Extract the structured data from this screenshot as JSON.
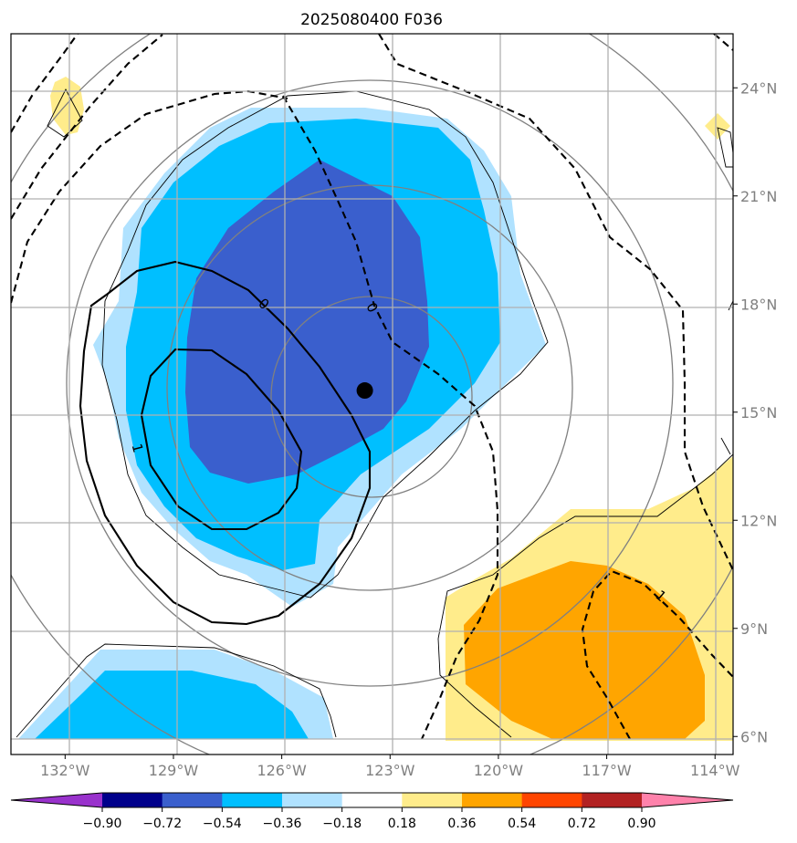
{
  "title": "2025080400 F036",
  "map": {
    "lon_range": [
      -133.5,
      -113.5
    ],
    "lat_range": [
      5.5,
      25.5
    ],
    "lon_ticks": [
      {
        "value": -132,
        "label": "132°W"
      },
      {
        "value": -129,
        "label": "129°W"
      },
      {
        "value": -126,
        "label": "126°W"
      },
      {
        "value": -123,
        "label": "123°W"
      },
      {
        "value": -120,
        "label": "120°W"
      },
      {
        "value": -117,
        "label": "117°W"
      },
      {
        "value": -114,
        "label": "114°W"
      }
    ],
    "lat_ticks": [
      {
        "value": 6,
        "label": "6°N"
      },
      {
        "value": 9,
        "label": "9°N"
      },
      {
        "value": 12,
        "label": "12°N"
      },
      {
        "value": 15,
        "label": "15°N"
      },
      {
        "value": 18,
        "label": "18°N"
      },
      {
        "value": 21,
        "label": "21°N"
      },
      {
        "value": 24,
        "label": "24°N"
      }
    ],
    "grid": true,
    "storm_center": {
      "lon": -123.7,
      "lat": 15.6
    },
    "contour_labels": [
      {
        "text": "0",
        "lon": -126.5,
        "lat": 18.0,
        "rotate": 40,
        "color": "#000000"
      },
      {
        "text": "0",
        "lon": -123.5,
        "lat": 17.9,
        "rotate": 60,
        "color": "#000000"
      },
      {
        "text": "1",
        "lon": -130.0,
        "lat": 14.0,
        "rotate": 75,
        "color": "#000000"
      },
      {
        "text": "1",
        "lon": -115.5,
        "lat": 9.9,
        "rotate": 40,
        "color": "#000000"
      }
    ]
  },
  "colorbar": {
    "ticks": [
      "−0.90",
      "−0.72",
      "−0.54",
      "−0.36",
      "−0.18",
      "0.18",
      "0.36",
      "0.54",
      "0.72",
      "0.90"
    ],
    "colors": [
      "#9932cc",
      "#00008b",
      "#3a5fcd",
      "#00bfff",
      "#b0e2ff",
      "#ffffff",
      "#ffec8b",
      "#ffa500",
      "#ff4500",
      "#b22222",
      "#ff82ab"
    ]
  }
}
